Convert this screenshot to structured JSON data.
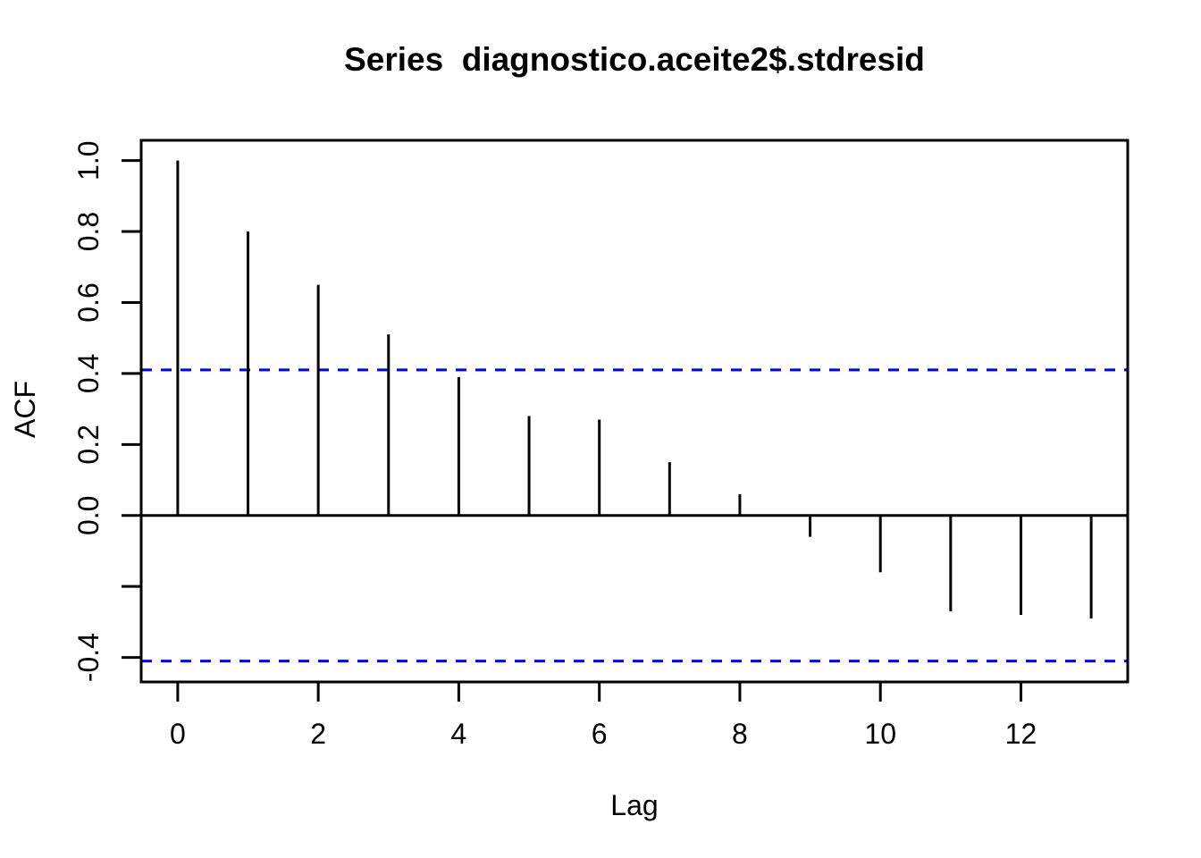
{
  "title": "Series  diagnostico.aceite2$.stdresid",
  "chart_data": {
    "type": "bar",
    "subtype": "acf-stem-plot",
    "title": "Series  diagnostico.aceite2$.stdresid",
    "xlabel": "Lag",
    "ylabel": "ACF",
    "x": [
      0,
      1,
      2,
      3,
      4,
      5,
      6,
      7,
      8,
      9,
      10,
      11,
      12,
      13
    ],
    "values": [
      1.0,
      0.8,
      0.65,
      0.51,
      0.39,
      0.28,
      0.27,
      0.15,
      0.06,
      -0.06,
      -0.16,
      -0.27,
      -0.28,
      -0.29
    ],
    "confidence_level": 0.41,
    "confidence_line_style": "dashed",
    "zero_line": 0.0,
    "xlim": [
      -0.52,
      13.52
    ],
    "ylim": [
      -0.469,
      1.057
    ],
    "x_ticks": [
      {
        "v": 0,
        "label": "0"
      },
      {
        "v": 2,
        "label": "2"
      },
      {
        "v": 4,
        "label": "4"
      },
      {
        "v": 6,
        "label": "6"
      },
      {
        "v": 8,
        "label": "8"
      },
      {
        "v": 10,
        "label": "10"
      },
      {
        "v": 12,
        "label": "12"
      }
    ],
    "y_ticks": [
      {
        "v": 1.0,
        "label": "1.0"
      },
      {
        "v": 0.8,
        "label": "0.8"
      },
      {
        "v": 0.6,
        "label": "0.6"
      },
      {
        "v": 0.4,
        "label": "0.4"
      },
      {
        "v": 0.2,
        "label": "0.2"
      },
      {
        "v": 0.0,
        "label": "0.0"
      },
      {
        "v": -0.2,
        "label": ""
      },
      {
        "v": -0.4,
        "label": "-0.4"
      }
    ],
    "grid": false,
    "legend": false,
    "colors": {
      "bar": "#000000",
      "axis": "#000000",
      "confidence": "#0000FF",
      "background": "#FFFFFF"
    }
  }
}
